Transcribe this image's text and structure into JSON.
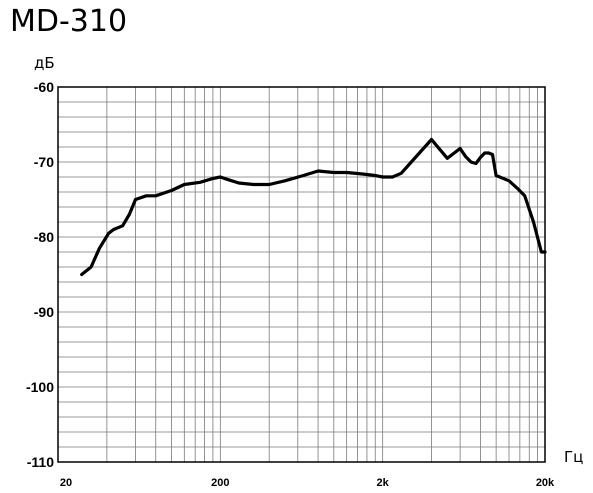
{
  "chart_data": {
    "type": "line",
    "title": "MD-310",
    "ylabel": "дБ",
    "xlabel": "Гц",
    "xscale": "log",
    "xlim": [
      20,
      20000
    ],
    "ylim": [
      -110,
      -60
    ],
    "grid": true,
    "y_ticks": [
      {
        "value": -60,
        "label": "-60"
      },
      {
        "value": -70,
        "label": "-70"
      },
      {
        "value": -80,
        "label": "-80"
      },
      {
        "value": -90,
        "label": "-90"
      },
      {
        "value": -100,
        "label": "-100"
      },
      {
        "value": -110,
        "label": "-110"
      }
    ],
    "x_ticks": [
      {
        "value": 20,
        "label": "20"
      },
      {
        "value": 200,
        "label": "200"
      },
      {
        "value": 2000,
        "label": "2k"
      },
      {
        "value": 20000,
        "label": "20k"
      }
    ],
    "series": [
      {
        "color": "#000000",
        "x": [
          28,
          32,
          36,
          41,
          44,
          50,
          55,
          60,
          70,
          80,
          100,
          120,
          150,
          180,
          200,
          220,
          260,
          320,
          400,
          500,
          650,
          800,
          1000,
          1200,
          1500,
          1800,
          2000,
          2300,
          2600,
          3000,
          4000,
          5000,
          6000,
          6500,
          7000,
          7500,
          8000,
          8500,
          9000,
          9500,
          10000,
          12000,
          13500,
          15000,
          17000,
          19000,
          20000
        ],
        "y": [
          -85,
          -84,
          -81.5,
          -79.5,
          -79,
          -78.5,
          -77,
          -75,
          -74.5,
          -74.5,
          -73.8,
          -73,
          -72.7,
          -72.2,
          -72,
          -72.3,
          -72.8,
          -73,
          -73,
          -72.5,
          -71.8,
          -71.2,
          -71.4,
          -71.4,
          -71.6,
          -71.8,
          -72,
          -72,
          -71.5,
          -70,
          -67,
          -69.5,
          -68.2,
          -69.3,
          -70,
          -70.2,
          -69.4,
          -68.8,
          -68.8,
          -69,
          -71.8,
          -72.5,
          -73.5,
          -74.5,
          -78,
          -82,
          -82
        ]
      }
    ]
  }
}
